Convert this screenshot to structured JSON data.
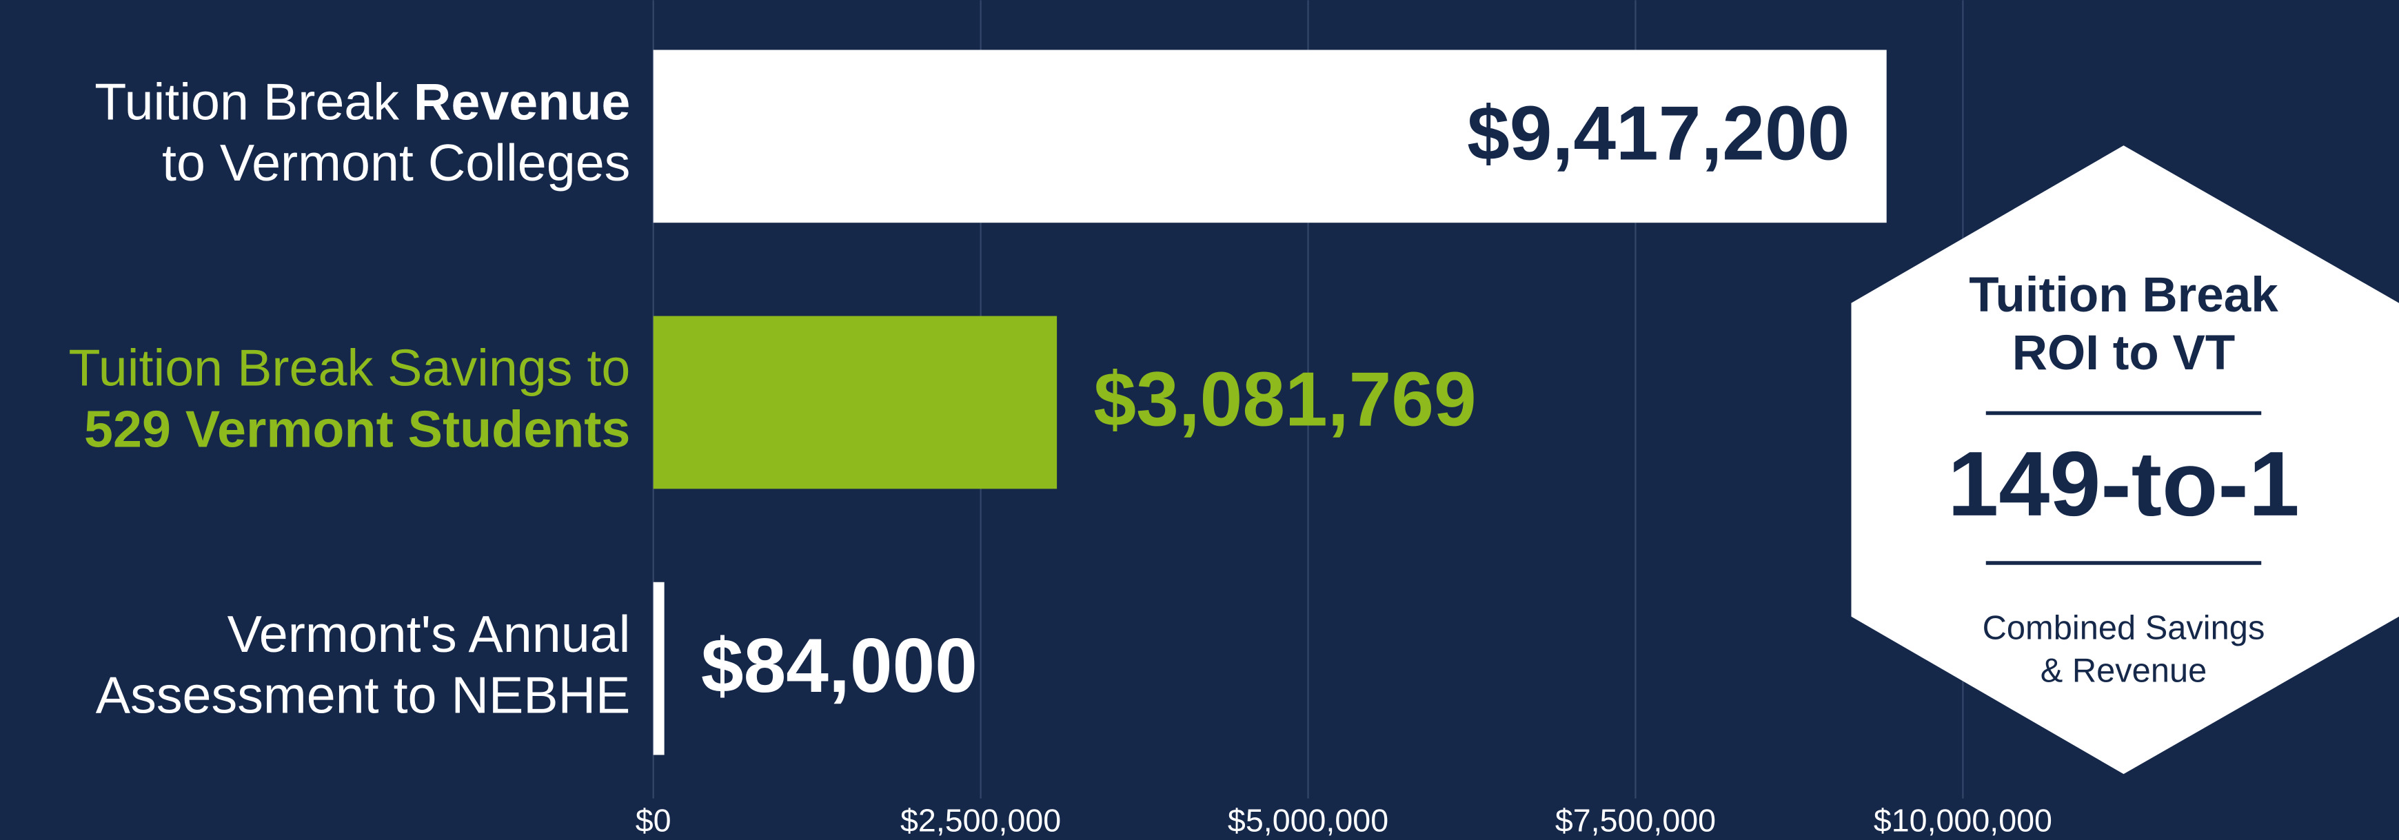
{
  "chart_data": {
    "type": "hbar",
    "categories": [
      {
        "lines": [
          [
            {
              "text": "Tuition Break "
            },
            {
              "text": "Revenue",
              "bold": true
            }
          ],
          [
            {
              "text": "to Vermont Colleges"
            }
          ]
        ]
      },
      {
        "lines": [
          [
            {
              "text": "Tuition Break Savings to"
            }
          ],
          [
            {
              "text": "529 Vermont Students",
              "bold": true
            }
          ]
        ]
      },
      {
        "lines": [
          [
            {
              "text": "Vermont's Annual"
            }
          ],
          [
            {
              "text": "Assessment to NEBHE"
            }
          ]
        ]
      }
    ],
    "values": [
      9417200,
      3081769,
      84000
    ],
    "value_labels": [
      "$9,417,200",
      "$3,081,769",
      "$84,000"
    ],
    "colors": [
      "#ffffff",
      "#8fba1e",
      "#ffffff"
    ],
    "background": "#15284a",
    "xlim": [
      0,
      13330000
    ],
    "xticks": [
      {
        "value": 0,
        "label": "$0"
      },
      {
        "value": 2500000,
        "label": "$2,500,000"
      },
      {
        "value": 5000000,
        "label": "$5,000,000"
      },
      {
        "value": 7500000,
        "label": "$7,500,000"
      },
      {
        "value": 10000000,
        "label": "$10,000,000"
      }
    ],
    "grid": true,
    "callout": {
      "title": [
        "Tuition Break",
        "ROI to VT"
      ],
      "value": "149-to-1",
      "caption": [
        "Combined Savings",
        "& Revenue"
      ]
    }
  }
}
